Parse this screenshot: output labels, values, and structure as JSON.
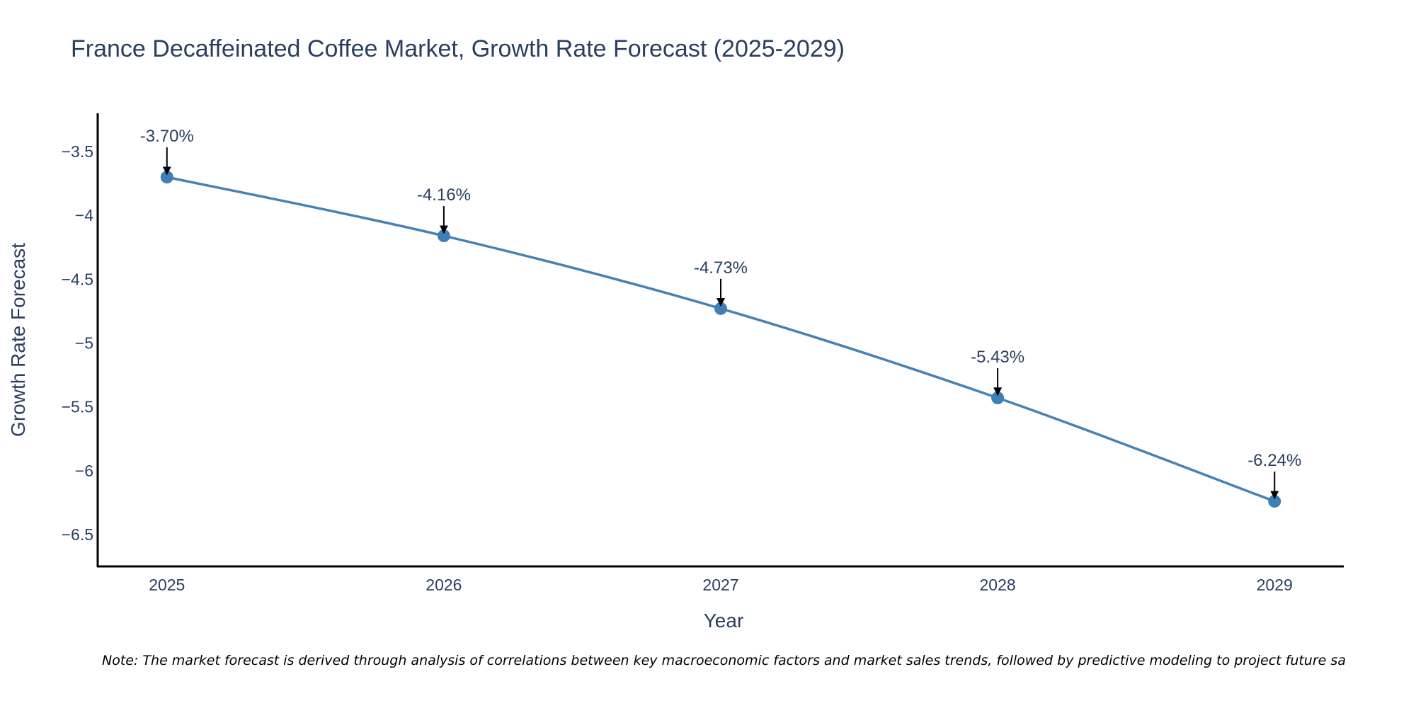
{
  "colors": {
    "line": "#4682b4",
    "marker": "#3f7fb5",
    "axis": "#000000",
    "text": "#2a3f5f",
    "arrow": "#000000"
  },
  "chart_data": {
    "type": "line",
    "title": "France Decaffeinated Coffee Market, Growth Rate Forecast (2025-2029)",
    "xlabel": "Year",
    "ylabel": "Growth Rate Forecast",
    "categories": [
      "2025",
      "2026",
      "2027",
      "2028",
      "2029"
    ],
    "series": [
      {
        "name": "Growth Rate Forecast",
        "values": [
          -3.7,
          -4.16,
          -4.73,
          -5.43,
          -6.24
        ]
      }
    ],
    "data_labels": [
      "-3.70%",
      "-4.16%",
      "-4.73%",
      "-5.43%",
      "-6.24%"
    ],
    "yticks": [
      -3.5,
      -4,
      -4.5,
      -5,
      -5.5,
      -6,
      -6.5
    ],
    "ytick_labels": [
      "−3.5",
      "−4",
      "−4.5",
      "−5",
      "−5.5",
      "−6",
      "−6.5"
    ],
    "ylim": [
      -6.75,
      -3.2
    ],
    "xlim": [
      -0.25,
      4.25
    ],
    "grid": false,
    "line_shape": "spline"
  },
  "note": "Note: The market forecast is derived through analysis of correlations between key macroeconomic factors and market sales trends, followed by predictive modeling to project future sa"
}
